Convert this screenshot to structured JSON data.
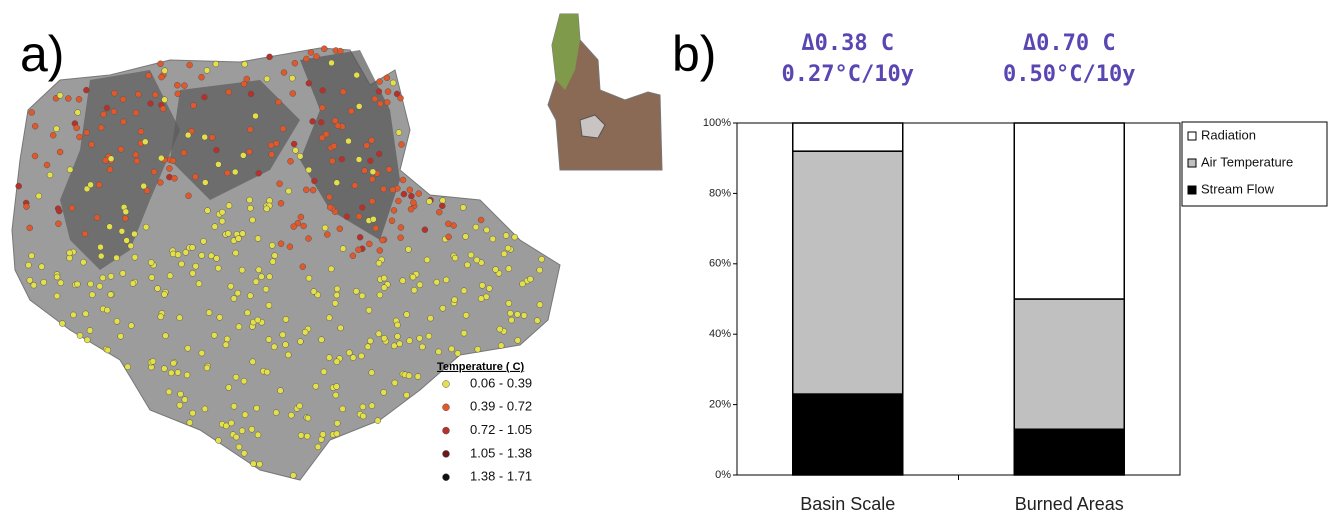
{
  "panel_a": {
    "label": "a)",
    "legend_title": "Temperature ( C)",
    "legend": [
      {
        "label": "0.06 - 0.39",
        "color": "#e4e04a"
      },
      {
        "label": "0.39 - 0.72",
        "color": "#e2582a"
      },
      {
        "label": "0.72 - 1.05",
        "color": "#b8302a"
      },
      {
        "label": "1.05 - 1.38",
        "color": "#6a1818"
      },
      {
        "label": "1.38 - 1.71",
        "color": "#111111"
      }
    ]
  },
  "panel_b": {
    "label": "b)"
  },
  "chart_data": {
    "type": "stacked_bar",
    "categories": [
      "Basin Scale",
      "Burned Areas"
    ],
    "annotations": [
      [
        "Δ0.38 C",
        "0.27°C/10y"
      ],
      [
        "Δ0.70 C",
        "0.50°C/10y"
      ]
    ],
    "series": [
      {
        "name": "Stream Flow",
        "color": "#000000",
        "values": [
          23,
          13
        ]
      },
      {
        "name": "Air Temperature",
        "color": "#c0c0c0",
        "values": [
          69,
          37
        ]
      },
      {
        "name": "Radiation",
        "color": "#ffffff",
        "values": [
          8,
          50
        ]
      }
    ],
    "ylim": [
      0,
      100
    ],
    "yticks": [
      {
        "value": 0,
        "label": "0%"
      },
      {
        "value": 20,
        "label": "20%"
      },
      {
        "value": 40,
        "label": "40%"
      },
      {
        "value": 60,
        "label": "60%"
      },
      {
        "value": 80,
        "label": "80%"
      },
      {
        "value": 100,
        "label": "100%"
      }
    ],
    "legend": "upper right"
  }
}
